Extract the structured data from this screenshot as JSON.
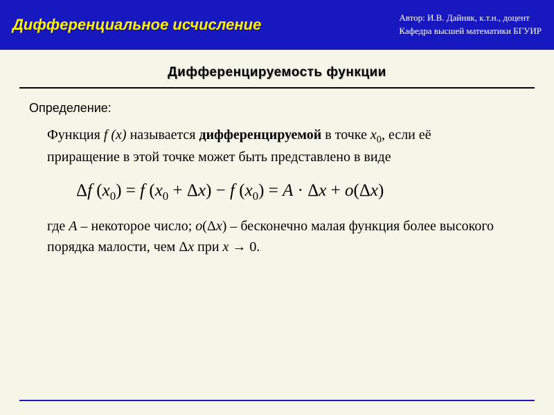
{
  "header": {
    "title": "Дифференциальное исчисление",
    "author_line1": "Автор:  И.В. Дайняк, к.т.н., доцент",
    "author_line2": "Кафедра высшей математики БГУИР"
  },
  "section_title": "Дифференцируемость функции",
  "definition_label": "Определение:",
  "paragraph1": {
    "pre_fx": "Функция  ",
    "fx": "f (x)",
    "post_fx": "  называется ",
    "bold": "дифференцируемой",
    "after_bold": " в точке  ",
    "x0_x": "x",
    "x0_0": "0",
    "tail": ", если её приращение в этой точке может быть представлено в виде"
  },
  "formula": {
    "delta1": "Δ",
    "f1": "f ",
    "lp1": "(",
    "x1": "x",
    "s1": "0",
    "rp1": ") ",
    "eq1": "= ",
    "f2": "f ",
    "lp2": "(",
    "x2": "x",
    "s2": "0",
    "plus1": " + ",
    "delta2": "Δ",
    "x3": "x",
    "rp2": ") ",
    "minus": "− ",
    "f3": "f ",
    "lp3": "(",
    "x4": "x",
    "s3": "0",
    "rp3": ") ",
    "eq2": "= ",
    "A": "A",
    "cdot": " · ",
    "delta3": "Δ",
    "x5": "x",
    "plus2": " + ",
    "o": "o",
    "lp4": "(",
    "delta4": "Δ",
    "x6": "x",
    "rp4": ")"
  },
  "paragraph2": {
    "pre_A": "где  ",
    "A": "A",
    "post_A": "  –  некоторое число;  ",
    "o": "o",
    "lpo": "(",
    "delta_o": "Δ",
    "xo": "x",
    "rpo": ")",
    "post_o": "  –  бесконечно малая функция более высокого порядка малости, чем  ",
    "delta_end": "Δ",
    "x_end": "x",
    "pri": " при    ",
    "x_lim": "x",
    "arrow": " → ",
    "zero": "0."
  },
  "colors": {
    "header_bg": "#1818c0",
    "title_color": "#fff200",
    "page_bg": "#f5f5e8",
    "footer_line": "#1818c0"
  }
}
